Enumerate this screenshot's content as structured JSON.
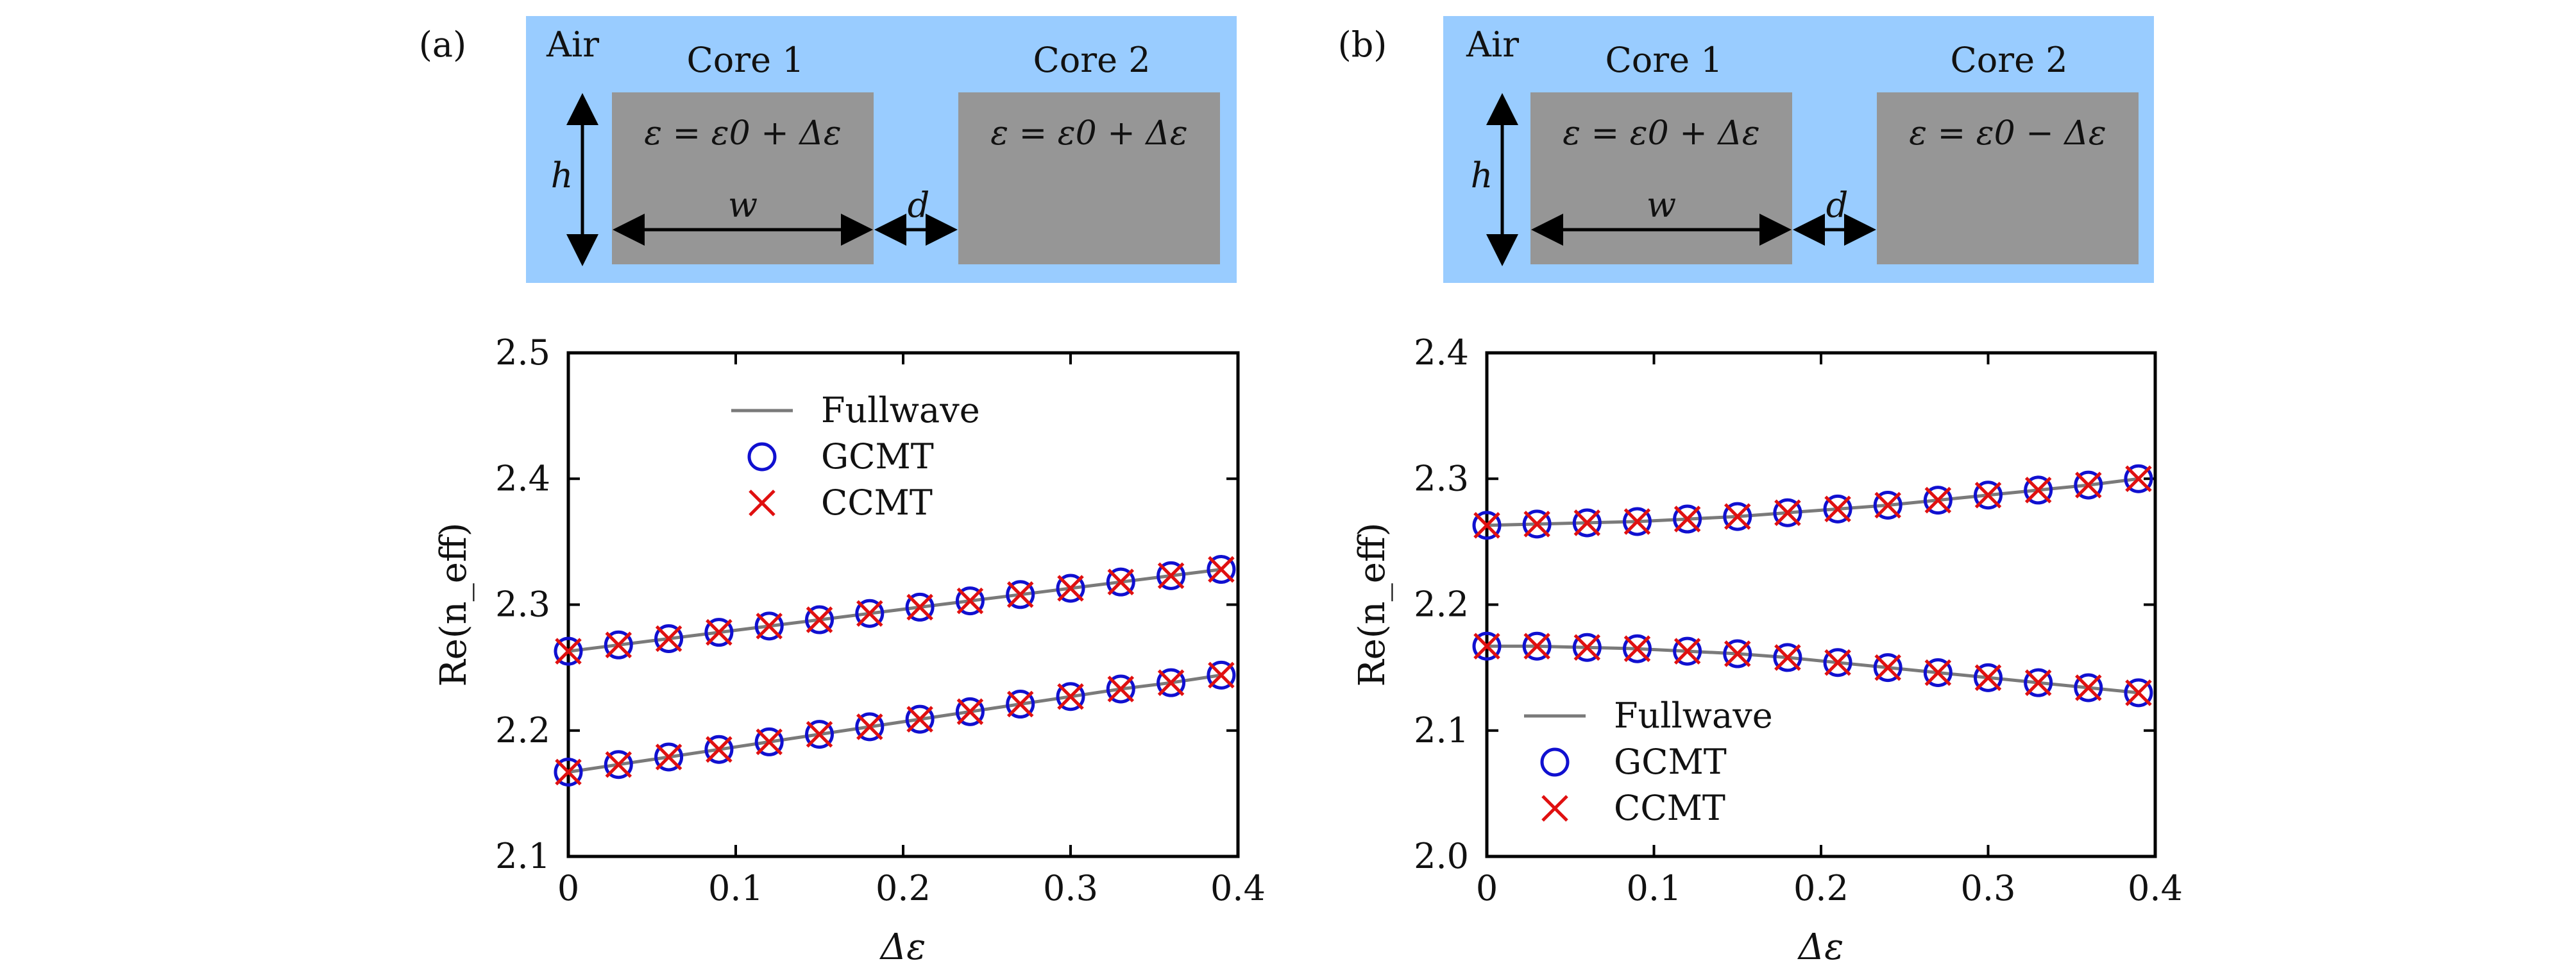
{
  "panels": [
    {
      "label": "(a)",
      "diagram": {
        "air_label": "Air",
        "core1_title": "Core 1",
        "core2_title": "Core 2",
        "core1_eq": "ε = ε0 + Δε",
        "core2_eq": "ε = ε0 + Δε",
        "h_label": "h",
        "w_label": "w",
        "d_label": "d"
      }
    },
    {
      "label": "(b)",
      "diagram": {
        "air_label": "Air",
        "core1_title": "Core 1",
        "core2_title": "Core 2",
        "core1_eq": "ε = ε0 + Δε",
        "core2_eq": "ε = ε0 − Δε",
        "h_label": "h",
        "w_label": "w",
        "d_label": "d"
      }
    }
  ],
  "colors": {
    "air": "#99ccff",
    "core": "#969696",
    "fullwave": "#7a7a7a",
    "gcmt": "#1010d0",
    "ccmt": "#e01010"
  },
  "chart_data": [
    {
      "type": "line",
      "xlabel": "Δε",
      "ylabel": "Re(n_eff)",
      "xlim": [
        0,
        0.4
      ],
      "ylim": [
        2.1,
        2.5
      ],
      "xticks": [
        "0",
        "0.1",
        "0.2",
        "0.3",
        "0.4"
      ],
      "yticks": [
        "2.1",
        "2.2",
        "2.3",
        "2.4",
        "2.5"
      ],
      "legend_position": "top-center",
      "x": [
        0,
        0.03,
        0.06,
        0.09,
        0.12,
        0.15,
        0.18,
        0.21,
        0.24,
        0.27,
        0.3,
        0.33,
        0.36,
        0.39
      ],
      "series": [
        {
          "name": "Fullwave",
          "style": "line",
          "upper": [
            2.263,
            2.268,
            2.273,
            2.278,
            2.283,
            2.288,
            2.293,
            2.298,
            2.303,
            2.308,
            2.313,
            2.318,
            2.323,
            2.328
          ],
          "lower": [
            2.167,
            2.173,
            2.179,
            2.185,
            2.191,
            2.197,
            2.203,
            2.209,
            2.215,
            2.221,
            2.227,
            2.233,
            2.238,
            2.244
          ]
        },
        {
          "name": "GCMT",
          "style": "circle",
          "upper": [
            2.263,
            2.268,
            2.273,
            2.278,
            2.283,
            2.288,
            2.293,
            2.298,
            2.303,
            2.308,
            2.313,
            2.318,
            2.323,
            2.328
          ],
          "lower": [
            2.167,
            2.173,
            2.179,
            2.185,
            2.191,
            2.197,
            2.203,
            2.209,
            2.215,
            2.221,
            2.227,
            2.233,
            2.238,
            2.244
          ]
        },
        {
          "name": "CCMT",
          "style": "cross",
          "upper": [
            2.263,
            2.268,
            2.273,
            2.278,
            2.283,
            2.288,
            2.293,
            2.298,
            2.303,
            2.308,
            2.313,
            2.318,
            2.323,
            2.328
          ],
          "lower": [
            2.167,
            2.173,
            2.179,
            2.185,
            2.191,
            2.197,
            2.203,
            2.209,
            2.215,
            2.221,
            2.227,
            2.233,
            2.238,
            2.244
          ]
        }
      ]
    },
    {
      "type": "line",
      "xlabel": "Δε",
      "ylabel": "Re(n_eff)",
      "xlim": [
        0,
        0.4
      ],
      "ylim": [
        2.0,
        2.4
      ],
      "xticks": [
        "0",
        "0.1",
        "0.2",
        "0.3",
        "0.4"
      ],
      "yticks": [
        "2.0",
        "2.1",
        "2.2",
        "2.3",
        "2.4"
      ],
      "legend_position": "bottom-left",
      "x": [
        0,
        0.03,
        0.06,
        0.09,
        0.12,
        0.15,
        0.18,
        0.21,
        0.24,
        0.27,
        0.3,
        0.33,
        0.36,
        0.39
      ],
      "series": [
        {
          "name": "Fullwave",
          "style": "line",
          "upper": [
            2.263,
            2.264,
            2.265,
            2.266,
            2.268,
            2.27,
            2.273,
            2.276,
            2.279,
            2.283,
            2.287,
            2.291,
            2.295,
            2.3
          ],
          "lower": [
            2.167,
            2.167,
            2.166,
            2.165,
            2.163,
            2.161,
            2.158,
            2.154,
            2.15,
            2.146,
            2.142,
            2.138,
            2.134,
            2.13
          ]
        },
        {
          "name": "GCMT",
          "style": "circle",
          "upper": [
            2.263,
            2.264,
            2.265,
            2.266,
            2.268,
            2.27,
            2.273,
            2.276,
            2.279,
            2.283,
            2.287,
            2.291,
            2.295,
            2.3
          ],
          "lower": [
            2.167,
            2.167,
            2.166,
            2.165,
            2.163,
            2.161,
            2.158,
            2.154,
            2.15,
            2.146,
            2.142,
            2.138,
            2.134,
            2.13
          ]
        },
        {
          "name": "CCMT",
          "style": "cross",
          "upper": [
            2.263,
            2.264,
            2.265,
            2.266,
            2.268,
            2.27,
            2.273,
            2.276,
            2.279,
            2.283,
            2.287,
            2.291,
            2.295,
            2.3
          ],
          "lower": [
            2.167,
            2.167,
            2.166,
            2.165,
            2.163,
            2.161,
            2.158,
            2.154,
            2.15,
            2.146,
            2.142,
            2.138,
            2.134,
            2.13
          ]
        }
      ]
    }
  ]
}
